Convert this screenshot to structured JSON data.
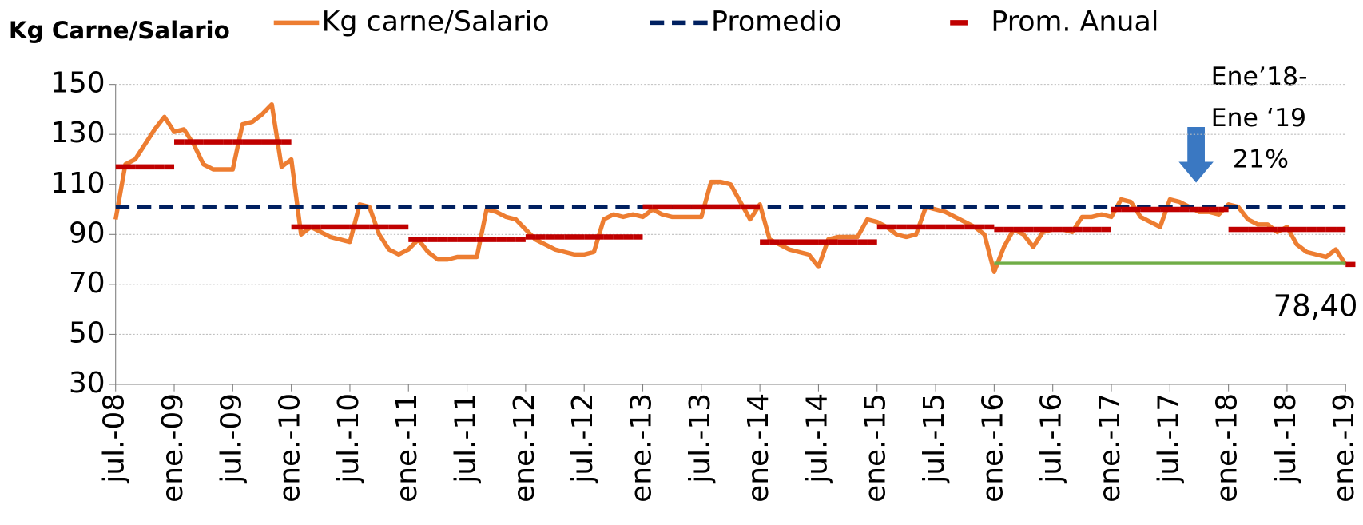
{
  "chart_data": {
    "type": "line",
    "y_axis_label": "Kg Carne/Salario",
    "categories": [
      "jul.-08",
      null,
      null,
      null,
      null,
      null,
      "ene.-09",
      null,
      null,
      null,
      null,
      null,
      "jul.-09",
      null,
      null,
      null,
      null,
      null,
      "ene.-10",
      null,
      null,
      null,
      null,
      null,
      "jul.-10",
      null,
      null,
      null,
      null,
      null,
      "ene.-11",
      null,
      null,
      null,
      null,
      null,
      "jul.-11",
      null,
      null,
      null,
      null,
      null,
      "ene.-12",
      null,
      null,
      null,
      null,
      null,
      "jul.-12",
      null,
      null,
      null,
      null,
      null,
      "ene.-13",
      null,
      null,
      null,
      null,
      null,
      "jul.-13",
      null,
      null,
      null,
      null,
      null,
      "ene.-14",
      null,
      null,
      null,
      null,
      null,
      "jul.-14",
      null,
      null,
      null,
      null,
      null,
      "ene.-15",
      null,
      null,
      null,
      null,
      null,
      "jul.-15",
      null,
      null,
      null,
      null,
      null,
      "ene.-16",
      null,
      null,
      null,
      null,
      null,
      "jul.-16",
      null,
      null,
      null,
      null,
      null,
      "ene.-17",
      null,
      null,
      null,
      null,
      null,
      "jul.-17",
      null,
      null,
      null,
      null,
      null,
      "ene.-18",
      null,
      null,
      null,
      null,
      null,
      "jul.-18",
      null,
      null,
      null,
      null,
      null,
      "ene.-19"
    ],
    "series": [
      {
        "name": "Kg carne/Salario",
        "color": "#ed7d31",
        "style": "solid",
        "values": [
          96,
          118,
          120,
          126,
          132,
          137,
          131,
          132,
          126,
          118,
          116,
          116,
          116,
          134,
          135,
          138,
          142,
          117,
          120,
          90,
          93,
          91,
          89,
          88,
          87,
          102,
          101,
          90,
          84,
          82,
          84,
          88,
          83,
          80,
          80,
          81,
          81,
          81,
          100,
          99,
          97,
          96,
          92,
          88,
          86,
          84,
          83,
          82,
          82,
          83,
          96,
          98,
          97,
          98,
          97,
          100,
          98,
          97,
          97,
          97,
          97,
          111,
          111,
          110,
          103,
          96,
          102,
          88,
          86,
          84,
          83,
          82,
          77,
          88,
          89,
          89,
          89,
          96,
          95,
          93,
          90,
          89,
          90,
          101,
          100,
          99,
          97,
          95,
          93,
          90,
          75,
          85,
          92,
          90,
          85,
          91,
          92,
          92,
          91,
          97,
          97,
          98,
          97,
          104,
          103,
          97,
          95,
          93,
          104,
          103,
          101,
          99,
          99,
          98,
          102,
          101,
          96,
          94,
          94,
          91,
          93,
          86,
          83,
          82,
          81,
          84,
          78
        ]
      },
      {
        "name": "Promedio",
        "color": "#002060",
        "style": "dashed",
        "value": 101
      },
      {
        "name": "Prom. Anual",
        "color": "#c00000",
        "style": "steps",
        "values": [
          117,
          117,
          117,
          117,
          117,
          117,
          127,
          127,
          127,
          127,
          127,
          127,
          127,
          127,
          127,
          127,
          127,
          127,
          93,
          93,
          93,
          93,
          93,
          93,
          93,
          93,
          93,
          93,
          93,
          93,
          88,
          88,
          88,
          88,
          88,
          88,
          88,
          88,
          88,
          88,
          88,
          88,
          89,
          89,
          89,
          89,
          89,
          89,
          89,
          89,
          89,
          89,
          89,
          89,
          101,
          101,
          101,
          101,
          101,
          101,
          101,
          101,
          101,
          101,
          101,
          101,
          87,
          87,
          87,
          87,
          87,
          87,
          87,
          87,
          87,
          87,
          87,
          87,
          93,
          93,
          93,
          93,
          93,
          93,
          93,
          93,
          93,
          93,
          93,
          93,
          92,
          92,
          92,
          92,
          92,
          92,
          92,
          92,
          92,
          92,
          92,
          92,
          100,
          100,
          100,
          100,
          100,
          100,
          100,
          100,
          100,
          100,
          100,
          100,
          92,
          92,
          92,
          92,
          92,
          92,
          92,
          92,
          92,
          92,
          92,
          92,
          78
        ]
      }
    ],
    "reference_line": {
      "value": 78.4,
      "label": "78,40",
      "from": "ene.-16",
      "to": "ene.-19",
      "color": "#70ad47"
    },
    "annotations": [
      "Ene’18-",
      "Ene ‘19",
      "21%"
    ],
    "ylim": [
      30,
      150
    ],
    "yticks": [
      30,
      50,
      70,
      90,
      110,
      130,
      150
    ],
    "grid": true
  }
}
